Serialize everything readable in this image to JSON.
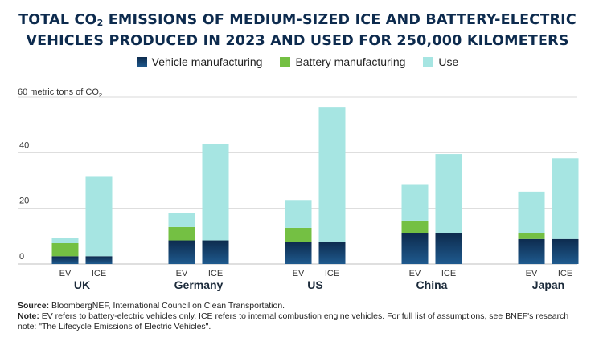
{
  "title_line1_pre": "TOTAL CO",
  "title_sub": "2",
  "title_line1_post": " EMISSIONS OF MEDIUM-SIZED ICE AND BATTERY-ELECTRIC",
  "title_line2": "VEHICLES PRODUCED IN 2023 AND USED FOR 250,000 KILOMETERS",
  "y_axis_label_pre": "60 metric tons of CO",
  "y_axis_label_sub": "2",
  "source_label": "Source:",
  "source_text": " BloombergNEF, International Council on Clean Transportation.",
  "note_label": "Note:",
  "note_text": " EV refers to battery-electric vehicles only. ICE refers to internal combustion engine vehicles. For full list of assumptions, see BNEF's research note: \"The Lifecycle Emissions of Electric Vehicles\".",
  "colors": {
    "vehicle_dark": "#0d2b4e",
    "vehicle_light": "#1f5a8e",
    "battery": "#74c043",
    "use": "#a6e5e2",
    "grid": "#d9d9d9",
    "text": "#222222",
    "title": "#0d2b4e"
  },
  "chart_data": {
    "type": "bar",
    "stacked": true,
    "title": "TOTAL CO2 EMISSIONS OF MEDIUM-SIZED ICE AND BATTERY-ELECTRIC VEHICLES PRODUCED IN 2023 AND USED FOR 250,000 KILOMETERS",
    "ylabel": "metric tons of CO2",
    "ylim": [
      0,
      60
    ],
    "yticks": [
      0,
      20,
      40
    ],
    "grid": true,
    "legend_position": "top-center",
    "groups": [
      "UK",
      "Germany",
      "US",
      "China",
      "Japan"
    ],
    "subcategories": [
      "EV",
      "ICE"
    ],
    "series": [
      {
        "name": "Vehicle manufacturing",
        "values": [
          [
            2.8,
            2.8
          ],
          [
            8.5,
            8.5
          ],
          [
            7.8,
            8.0
          ],
          [
            11.0,
            11.0
          ],
          [
            9.0,
            9.0
          ]
        ]
      },
      {
        "name": "Battery manufacturing",
        "values": [
          [
            4.7,
            0
          ],
          [
            4.8,
            0
          ],
          [
            5.2,
            0
          ],
          [
            4.6,
            0
          ],
          [
            2.2,
            0
          ]
        ]
      },
      {
        "name": "Use",
        "values": [
          [
            1.8,
            28.8
          ],
          [
            5.0,
            34.5
          ],
          [
            10.0,
            48.5
          ],
          [
            13.1,
            28.5
          ],
          [
            14.8,
            29.0
          ]
        ]
      }
    ]
  }
}
